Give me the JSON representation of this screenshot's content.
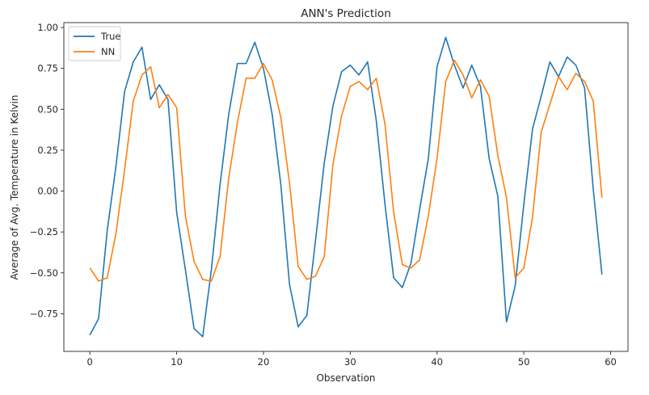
{
  "chart_data": {
    "type": "line",
    "title": "ANN's Prediction",
    "xlabel": "Observation",
    "ylabel": "Average of Avg. Temperature in Kelvin",
    "xlim": [
      -3,
      62
    ],
    "ylim": [
      -0.98,
      1.03
    ],
    "xticks": [
      0,
      10,
      20,
      30,
      40,
      50,
      60
    ],
    "xtick_labels": [
      "0",
      "10",
      "20",
      "30",
      "40",
      "50",
      "60"
    ],
    "yticks": [
      -0.75,
      -0.5,
      -0.25,
      0.0,
      0.25,
      0.5,
      0.75,
      1.0
    ],
    "ytick_labels": [
      "−0.75",
      "−0.50",
      "−0.25",
      "0.00",
      "0.25",
      "0.50",
      "0.75",
      "1.00"
    ],
    "grid": false,
    "legend_position": "top-left",
    "x": [
      0,
      1,
      2,
      3,
      4,
      5,
      6,
      7,
      8,
      9,
      10,
      11,
      12,
      13,
      14,
      15,
      16,
      17,
      18,
      19,
      20,
      21,
      22,
      23,
      24,
      25,
      26,
      27,
      28,
      29,
      30,
      31,
      32,
      33,
      34,
      35,
      36,
      37,
      38,
      39,
      40,
      41,
      42,
      43,
      44,
      45,
      46,
      47,
      48,
      49,
      50,
      51,
      52,
      53,
      54,
      55,
      56,
      57,
      58,
      59
    ],
    "series": [
      {
        "name": "True",
        "color": "#1f77b4",
        "values": [
          -0.88,
          -0.78,
          -0.24,
          0.15,
          0.61,
          0.79,
          0.88,
          0.56,
          0.65,
          0.56,
          -0.13,
          -0.48,
          -0.84,
          -0.89,
          -0.48,
          0.04,
          0.47,
          0.78,
          0.78,
          0.91,
          0.75,
          0.47,
          0.04,
          -0.57,
          -0.83,
          -0.76,
          -0.3,
          0.17,
          0.52,
          0.73,
          0.77,
          0.71,
          0.79,
          0.43,
          -0.08,
          -0.53,
          -0.59,
          -0.44,
          -0.11,
          0.2,
          0.76,
          0.94,
          0.77,
          0.63,
          0.77,
          0.64,
          0.2,
          -0.03,
          -0.8,
          -0.58,
          -0.08,
          0.38,
          0.58,
          0.79,
          0.7,
          0.82,
          0.77,
          0.63,
          0.01,
          -0.51
        ]
      },
      {
        "name": "NN",
        "color": "#ff7f0e",
        "values": [
          -0.47,
          -0.55,
          -0.53,
          -0.26,
          0.13,
          0.55,
          0.71,
          0.76,
          0.51,
          0.59,
          0.51,
          -0.15,
          -0.43,
          -0.54,
          -0.55,
          -0.4,
          0.08,
          0.42,
          0.69,
          0.69,
          0.78,
          0.68,
          0.45,
          0.05,
          -0.46,
          -0.54,
          -0.52,
          -0.4,
          0.16,
          0.46,
          0.64,
          0.67,
          0.62,
          0.69,
          0.41,
          -0.13,
          -0.45,
          -0.47,
          -0.42,
          -0.15,
          0.2,
          0.67,
          0.8,
          0.71,
          0.57,
          0.68,
          0.58,
          0.22,
          -0.04,
          -0.53,
          -0.47,
          -0.16,
          0.36,
          0.53,
          0.7,
          0.62,
          0.72,
          0.67,
          0.55,
          -0.04
        ]
      }
    ]
  }
}
